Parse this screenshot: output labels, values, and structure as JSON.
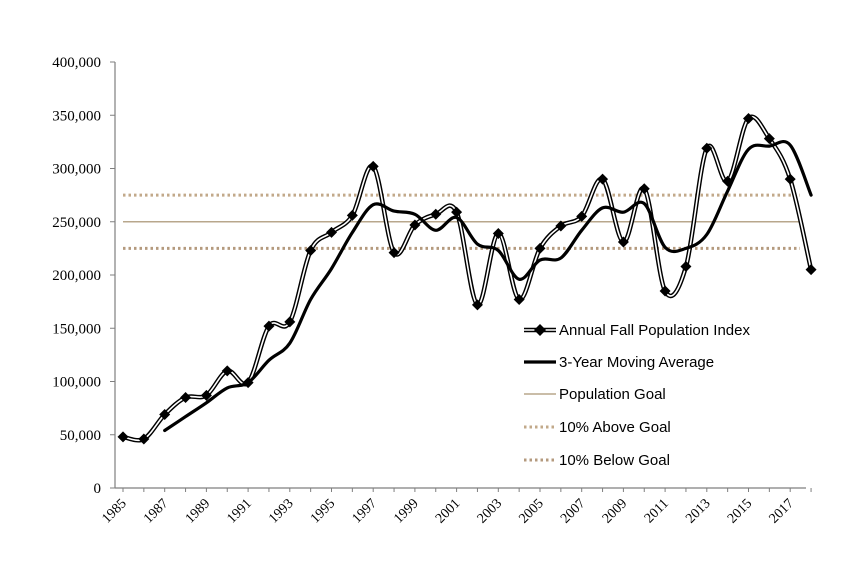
{
  "chart_data": {
    "type": "line",
    "title": "",
    "xlabel": "",
    "ylabel": "",
    "ylim": [
      0,
      400000
    ],
    "xlim": [
      1985,
      2018
    ],
    "y_ticks": [
      "0",
      "50,000",
      "100,000",
      "150,000",
      "200,000",
      "250,000",
      "300,000",
      "350,000",
      "400,000"
    ],
    "y_tick_values": [
      0,
      50000,
      100000,
      150000,
      200000,
      250000,
      300000,
      350000,
      400000
    ],
    "x_ticks": [
      "1985",
      "1987",
      "1989",
      "1991",
      "1993",
      "1995",
      "1997",
      "1999",
      "2001",
      "2003",
      "2005",
      "2007",
      "2009",
      "2011",
      "2013",
      "2015",
      "2017"
    ],
    "x_tick_values": [
      1985,
      1987,
      1989,
      1991,
      1993,
      1995,
      1997,
      1999,
      2001,
      2003,
      2005,
      2007,
      2009,
      2011,
      2013,
      2015,
      2017
    ],
    "grid": false,
    "legend_position": "right",
    "series": [
      {
        "name": "Annual Fall Population Index",
        "style": "double-line-with-diamond-markers",
        "color": "#000000",
        "x": [
          1985,
          1986,
          1987,
          1988,
          1989,
          1990,
          1991,
          1992,
          1993,
          1994,
          1995,
          1996,
          1997,
          1998,
          1999,
          2000,
          2001,
          2002,
          2003,
          2004,
          2005,
          2006,
          2007,
          2008,
          2009,
          2010,
          2011,
          2012,
          2013,
          2014,
          2015,
          2016,
          2017,
          2018
        ],
        "y": [
          48000,
          46000,
          69000,
          85000,
          87000,
          110000,
          99000,
          152000,
          156000,
          223000,
          240000,
          256000,
          302000,
          221000,
          247000,
          257000,
          259000,
          172000,
          239000,
          177000,
          225000,
          246000,
          255000,
          290000,
          231000,
          281000,
          185000,
          208000,
          319000,
          288000,
          347000,
          328000,
          290000,
          205000
        ]
      },
      {
        "name": "3-Year Moving Average",
        "style": "thick-smooth-line",
        "color": "#000000",
        "x": [
          1987,
          1988,
          1989,
          1990,
          1991,
          1992,
          1993,
          1994,
          1995,
          1996,
          1997,
          1998,
          1999,
          2000,
          2001,
          2002,
          2003,
          2004,
          2005,
          2006,
          2007,
          2008,
          2009,
          2010,
          2011,
          2012,
          2013,
          2014,
          2015,
          2016,
          2017,
          2018
        ],
        "y": [
          54000,
          67000,
          80000,
          94000,
          99000,
          120000,
          136000,
          177000,
          206000,
          240000,
          266000,
          260000,
          257000,
          242000,
          254000,
          229000,
          223000,
          196000,
          214000,
          216000,
          242000,
          263000,
          259000,
          267000,
          226000,
          225000,
          238000,
          279000,
          318000,
          321000,
          322000,
          275000
        ]
      },
      {
        "name": "Population Goal",
        "style": "thin-solid",
        "color": "#b8a78c",
        "constant": 250000
      },
      {
        "name": "10% Above Goal",
        "style": "dotted",
        "color": "#c2a98a",
        "constant": 275000
      },
      {
        "name": "10% Below Goal",
        "style": "dotted",
        "color": "#b49a7e",
        "constant": 225000
      }
    ]
  }
}
